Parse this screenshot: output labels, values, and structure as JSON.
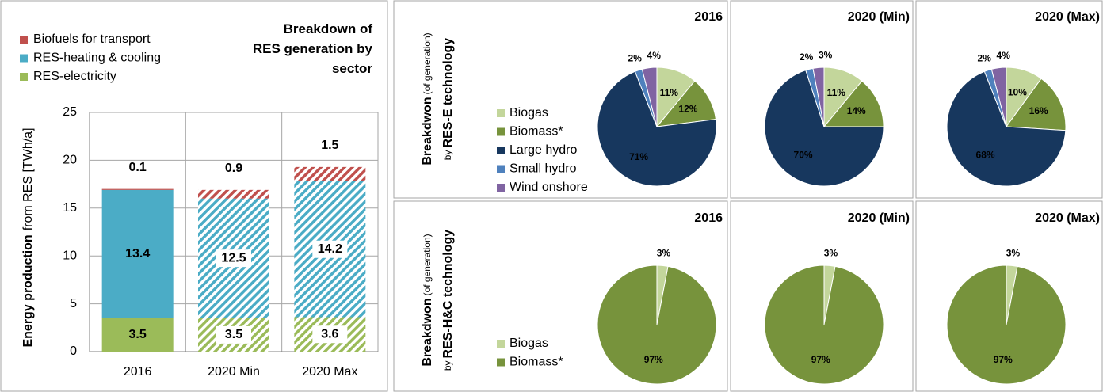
{
  "chart_data": [
    {
      "type": "bar",
      "stacked": true,
      "title": "Breakdown of RES generation by sector",
      "ylabel": [
        "Energy production",
        "from RES [TWh/a]"
      ],
      "categories": [
        "2016",
        "2020 Min",
        "2020 Max"
      ],
      "hatched": [
        false,
        true,
        true
      ],
      "series": [
        {
          "name": "RES-electricity",
          "color": "#9bbb59",
          "values": [
            3.5,
            3.5,
            3.6
          ]
        },
        {
          "name": "RES-heating & cooling",
          "color": "#4bacc6",
          "values": [
            13.4,
            12.5,
            14.2
          ]
        },
        {
          "name": "Biofuels for transport",
          "color": "#c0504d",
          "values": [
            0.1,
            0.9,
            1.5
          ]
        }
      ],
      "ylim": [
        0,
        25
      ],
      "yticks": [
        0,
        5,
        10,
        15,
        20,
        25
      ],
      "grid": true
    },
    {
      "type": "pie",
      "row_label": [
        "Breakdwon",
        "(of generation)",
        "by",
        "RES-E technology"
      ],
      "categories": [
        "Biogas",
        "Biomass*",
        "Large hydro",
        "Small hydro",
        "Wind onshore"
      ],
      "colors": [
        "#c3d69b",
        "#77933c",
        "#17375e",
        "#4f81bd",
        "#8064a2"
      ],
      "pies": [
        {
          "title": "2016",
          "values": [
            11,
            12,
            71,
            2,
            4
          ],
          "value_labels": [
            "11%",
            "12%",
            "71%",
            "2%",
            "4%"
          ]
        },
        {
          "title": "2020 (Min)",
          "values": [
            11,
            14,
            70,
            2,
            3
          ],
          "value_labels": [
            "11%",
            "14%",
            "70%",
            "2%",
            "3%"
          ]
        },
        {
          "title": "2020 (Max)",
          "values": [
            10,
            16,
            68,
            2,
            4
          ],
          "value_labels": [
            "10%",
            "16%",
            "68%",
            "2%",
            "4%"
          ]
        }
      ]
    },
    {
      "type": "pie",
      "row_label": [
        "Breakdwon",
        "(of generation)",
        "by",
        "RES-H&C technology"
      ],
      "categories": [
        "Biogas",
        "Biomass*"
      ],
      "colors": [
        "#c3d69b",
        "#77933c"
      ],
      "pies": [
        {
          "title": "2016",
          "values": [
            3,
            97
          ],
          "value_labels": [
            "3%",
            "97%"
          ]
        },
        {
          "title": "2020 (Min)",
          "values": [
            3,
            97
          ],
          "value_labels": [
            "3%",
            "97%"
          ]
        },
        {
          "title": "2020 (Max)",
          "values": [
            3,
            97
          ],
          "value_labels": [
            "3%",
            "97%"
          ]
        }
      ]
    }
  ]
}
